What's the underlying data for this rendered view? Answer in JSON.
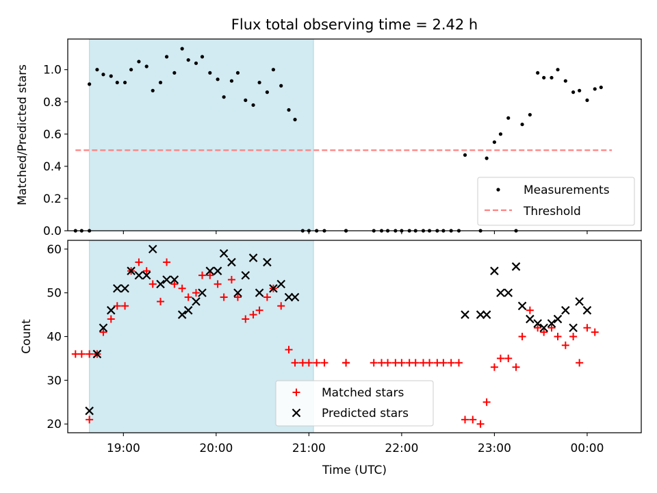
{
  "title": "Flux total observing time = 2.42 h",
  "colors": {
    "highlight": "#add8e6",
    "measurement": "#000000",
    "threshold": "#ff8080",
    "matched": "#ff0000",
    "predicted": "#000000"
  },
  "chart_data": [
    {
      "type": "scatter",
      "ylabel": "Matched/Predicted stars",
      "ylim": [
        0,
        1.19
      ],
      "yticks": [
        0.0,
        0.2,
        0.4,
        0.6,
        0.8,
        1.0
      ],
      "ytick_labels": [
        "0.0",
        "0.2",
        "0.4",
        "0.6",
        "0.8",
        "1.0"
      ],
      "xlim": [
        "18:24",
        "00:35"
      ],
      "xticks": [
        "19:00",
        "20:00",
        "21:00",
        "22:00",
        "23:00",
        "00:00"
      ],
      "shaded_interval": [
        "18:38",
        "21:03"
      ],
      "legend": {
        "position": "lower-right",
        "entries": [
          "Measurements",
          "Threshold"
        ]
      },
      "threshold": {
        "name": "Threshold",
        "y": 0.5,
        "x_range": [
          "18:29",
          "00:16"
        ]
      },
      "series": [
        {
          "name": "Measurements",
          "points": [
            [
              "18:29",
              0.0
            ],
            [
              "18:33",
              0.0
            ],
            [
              "18:38",
              0.0
            ],
            [
              "18:38",
              0.91
            ],
            [
              "18:43",
              1.0
            ],
            [
              "18:47",
              0.97
            ],
            [
              "18:52",
              0.96
            ],
            [
              "18:56",
              0.92
            ],
            [
              "19:01",
              0.92
            ],
            [
              "19:05",
              1.0
            ],
            [
              "19:10",
              1.05
            ],
            [
              "19:15",
              1.02
            ],
            [
              "19:19",
              0.87
            ],
            [
              "19:24",
              0.92
            ],
            [
              "19:28",
              1.08
            ],
            [
              "19:33",
              0.98
            ],
            [
              "19:38",
              1.13
            ],
            [
              "19:42",
              1.06
            ],
            [
              "19:47",
              1.04
            ],
            [
              "19:51",
              1.08
            ],
            [
              "19:56",
              0.98
            ],
            [
              "20:01",
              0.94
            ],
            [
              "20:05",
              0.83
            ],
            [
              "20:10",
              0.93
            ],
            [
              "20:14",
              0.98
            ],
            [
              "20:19",
              0.81
            ],
            [
              "20:24",
              0.78
            ],
            [
              "20:28",
              0.92
            ],
            [
              "20:33",
              0.86
            ],
            [
              "20:37",
              1.0
            ],
            [
              "20:42",
              0.9
            ],
            [
              "20:47",
              0.75
            ],
            [
              "20:51",
              0.69
            ],
            [
              "20:56",
              0.0
            ],
            [
              "21:00",
              0.0
            ],
            [
              "21:05",
              0.0
            ],
            [
              "21:10",
              0.0
            ],
            [
              "21:24",
              0.0
            ],
            [
              "21:24",
              0.0
            ],
            [
              "21:42",
              0.0
            ],
            [
              "21:47",
              0.0
            ],
            [
              "21:51",
              0.0
            ],
            [
              "21:56",
              0.0
            ],
            [
              "22:00",
              0.0
            ],
            [
              "22:05",
              0.0
            ],
            [
              "22:09",
              0.0
            ],
            [
              "22:14",
              0.0
            ],
            [
              "22:18",
              0.0
            ],
            [
              "22:23",
              0.0
            ],
            [
              "22:27",
              0.0
            ],
            [
              "22:32",
              0.0
            ],
            [
              "22:37",
              0.0
            ],
            [
              "22:41",
              0.47
            ],
            [
              "22:51",
              0.0
            ],
            [
              "22:55",
              0.45
            ],
            [
              "23:00",
              0.55
            ],
            [
              "23:04",
              0.6
            ],
            [
              "23:09",
              0.7
            ],
            [
              "23:14",
              0.0
            ],
            [
              "23:18",
              0.66
            ],
            [
              "23:23",
              0.72
            ],
            [
              "23:28",
              0.98
            ],
            [
              "23:32",
              0.95
            ],
            [
              "23:37",
              0.95
            ],
            [
              "23:41",
              1.0
            ],
            [
              "23:46",
              0.93
            ],
            [
              "23:51",
              0.86
            ],
            [
              "23:55",
              0.87
            ],
            [
              "00:00",
              0.81
            ],
            [
              "00:05",
              0.88
            ],
            [
              "00:09",
              0.89
            ]
          ]
        }
      ]
    },
    {
      "type": "scatter",
      "ylabel": "Count",
      "xlabel": "Time (UTC)",
      "ylim": [
        18,
        62
      ],
      "yticks": [
        20,
        30,
        40,
        50,
        60
      ],
      "ytick_labels": [
        "20",
        "30",
        "40",
        "50",
        "60"
      ],
      "xlim": [
        "18:24",
        "00:35"
      ],
      "xticks": [
        "19:00",
        "20:00",
        "21:00",
        "22:00",
        "23:00",
        "00:00"
      ],
      "xtick_labels": [
        "19:00",
        "20:00",
        "21:00",
        "22:00",
        "23:00",
        "00:00"
      ],
      "shaded_interval": [
        "18:38",
        "21:03"
      ],
      "legend": {
        "position": "lower-center",
        "entries": [
          "Matched stars",
          "Predicted stars"
        ]
      },
      "series": [
        {
          "name": "Matched stars",
          "points": [
            [
              "18:29",
              36
            ],
            [
              "18:33",
              36
            ],
            [
              "18:38",
              36
            ],
            [
              "18:38",
              21
            ],
            [
              "18:43",
              36
            ],
            [
              "18:47",
              41
            ],
            [
              "18:52",
              44
            ],
            [
              "18:56",
              47
            ],
            [
              "19:01",
              47
            ],
            [
              "19:05",
              55
            ],
            [
              "19:10",
              57
            ],
            [
              "19:15",
              55
            ],
            [
              "19:19",
              52
            ],
            [
              "19:24",
              48
            ],
            [
              "19:28",
              57
            ],
            [
              "19:33",
              52
            ],
            [
              "19:38",
              51
            ],
            [
              "19:42",
              49
            ],
            [
              "19:47",
              50
            ],
            [
              "19:51",
              54
            ],
            [
              "19:56",
              54
            ],
            [
              "20:01",
              52
            ],
            [
              "20:05",
              49
            ],
            [
              "20:10",
              53
            ],
            [
              "20:14",
              49
            ],
            [
              "20:19",
              44
            ],
            [
              "20:24",
              45
            ],
            [
              "20:28",
              46
            ],
            [
              "20:33",
              49
            ],
            [
              "20:37",
              51
            ],
            [
              "20:42",
              47
            ],
            [
              "20:47",
              37
            ],
            [
              "20:51",
              34
            ],
            [
              "20:56",
              34
            ],
            [
              "21:00",
              34
            ],
            [
              "21:05",
              34
            ],
            [
              "21:10",
              34
            ],
            [
              "21:24",
              34
            ],
            [
              "21:24",
              34
            ],
            [
              "21:42",
              34
            ],
            [
              "21:47",
              34
            ],
            [
              "21:51",
              34
            ],
            [
              "21:56",
              34
            ],
            [
              "22:00",
              34
            ],
            [
              "22:05",
              34
            ],
            [
              "22:09",
              34
            ],
            [
              "22:14",
              34
            ],
            [
              "22:18",
              34
            ],
            [
              "22:23",
              34
            ],
            [
              "22:27",
              34
            ],
            [
              "22:32",
              34
            ],
            [
              "22:37",
              34
            ],
            [
              "22:41",
              21
            ],
            [
              "22:46",
              21
            ],
            [
              "22:51",
              20
            ],
            [
              "22:55",
              25
            ],
            [
              "23:00",
              33
            ],
            [
              "23:04",
              35
            ],
            [
              "23:09",
              35
            ],
            [
              "23:14",
              33
            ],
            [
              "23:18",
              40
            ],
            [
              "23:23",
              46
            ],
            [
              "23:28",
              42
            ],
            [
              "23:32",
              41
            ],
            [
              "23:37",
              42
            ],
            [
              "23:41",
              40
            ],
            [
              "23:46",
              38
            ],
            [
              "23:51",
              40
            ],
            [
              "23:55",
              34
            ],
            [
              "00:00",
              42
            ],
            [
              "00:05",
              41
            ]
          ]
        },
        {
          "name": "Predicted stars",
          "points": [
            [
              "18:38",
              23
            ],
            [
              "18:43",
              36
            ],
            [
              "18:47",
              42
            ],
            [
              "18:52",
              46
            ],
            [
              "18:56",
              51
            ],
            [
              "19:01",
              51
            ],
            [
              "19:05",
              55
            ],
            [
              "19:10",
              54
            ],
            [
              "19:15",
              54
            ],
            [
              "19:19",
              60
            ],
            [
              "19:24",
              52
            ],
            [
              "19:28",
              53
            ],
            [
              "19:33",
              53
            ],
            [
              "19:38",
              45
            ],
            [
              "19:42",
              46
            ],
            [
              "19:47",
              48
            ],
            [
              "19:51",
              50
            ],
            [
              "19:56",
              55
            ],
            [
              "20:01",
              55
            ],
            [
              "20:05",
              59
            ],
            [
              "20:10",
              57
            ],
            [
              "20:14",
              50
            ],
            [
              "20:19",
              54
            ],
            [
              "20:24",
              58
            ],
            [
              "20:28",
              50
            ],
            [
              "20:33",
              57
            ],
            [
              "20:37",
              51
            ],
            [
              "20:42",
              52
            ],
            [
              "20:47",
              49
            ],
            [
              "20:51",
              49
            ],
            [
              "22:41",
              45
            ],
            [
              "22:51",
              45
            ],
            [
              "22:55",
              45
            ],
            [
              "23:00",
              55
            ],
            [
              "23:04",
              50
            ],
            [
              "23:09",
              50
            ],
            [
              "23:14",
              56
            ],
            [
              "23:18",
              47
            ],
            [
              "23:23",
              44
            ],
            [
              "23:28",
              43
            ],
            [
              "23:32",
              42
            ],
            [
              "23:37",
              43
            ],
            [
              "23:41",
              44
            ],
            [
              "23:46",
              46
            ],
            [
              "23:51",
              42
            ],
            [
              "23:55",
              48
            ],
            [
              "00:00",
              46
            ]
          ]
        }
      ]
    }
  ]
}
